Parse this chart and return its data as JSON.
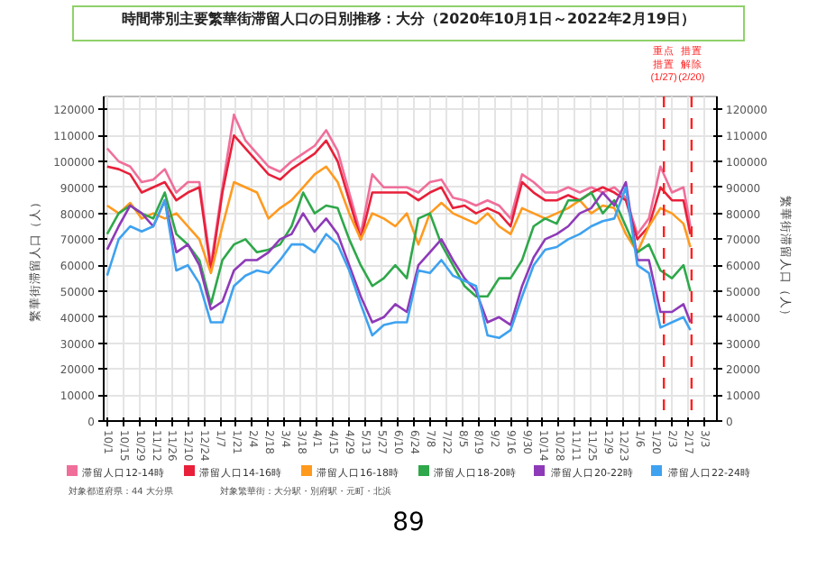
{
  "chart_data": {
    "type": "line",
    "title": "時間帯別主要繁華街滞留人口の日別推移：大分（2020年10月1日～2022年2月19日）",
    "ylabel": "繁華街滞留人口（人）",
    "y2label": "繁華街滞留人口（人）",
    "x": [
      "2020-10-01",
      "2020-10-11",
      "2020-10-21",
      "2020-10-31",
      "2020-11-10",
      "2020-11-20",
      "2020-11-30",
      "2020-12-10",
      "2020-12-20",
      "2020-12-30",
      "2021-01-09",
      "2021-01-19",
      "2021-01-29",
      "2021-02-08",
      "2021-02-18",
      "2021-02-28",
      "2021-03-10",
      "2021-03-20",
      "2021-03-30",
      "2021-04-09",
      "2021-04-19",
      "2021-04-29",
      "2021-05-09",
      "2021-05-19",
      "2021-05-29",
      "2021-06-08",
      "2021-06-18",
      "2021-06-28",
      "2021-07-08",
      "2021-07-18",
      "2021-07-28",
      "2021-08-07",
      "2021-08-17",
      "2021-08-27",
      "2021-09-06",
      "2021-09-16",
      "2021-09-26",
      "2021-10-06",
      "2021-10-16",
      "2021-10-26",
      "2021-11-05",
      "2021-11-15",
      "2021-11-25",
      "2021-12-05",
      "2021-12-15",
      "2021-12-25",
      "2022-01-04",
      "2022-01-14",
      "2022-01-24",
      "2022-02-03",
      "2022-02-13",
      "2022-02-19"
    ],
    "series": [
      {
        "name": "滞留人口12-14時",
        "color": "#f06f9a",
        "values": [
          105000,
          100000,
          98000,
          92000,
          93000,
          97000,
          88000,
          92000,
          92000,
          60000,
          90000,
          118000,
          108000,
          103000,
          98000,
          96000,
          100000,
          103000,
          106000,
          112000,
          104000,
          88000,
          72000,
          95000,
          90000,
          90000,
          90000,
          88000,
          92000,
          93000,
          86000,
          85000,
          83000,
          85000,
          83000,
          78000,
          95000,
          92000,
          88000,
          88000,
          90000,
          88000,
          90000,
          88000,
          90000,
          86000,
          72000,
          78000,
          98000,
          88000,
          90000,
          75000
        ]
      },
      {
        "name": "滞留人口14-16時",
        "color": "#e8203a",
        "values": [
          98000,
          97000,
          95000,
          88000,
          90000,
          92000,
          85000,
          88000,
          90000,
          58000,
          88000,
          110000,
          105000,
          100000,
          95000,
          93000,
          97000,
          100000,
          103000,
          108000,
          100000,
          85000,
          70000,
          88000,
          88000,
          88000,
          88000,
          85000,
          88000,
          90000,
          82000,
          83000,
          80000,
          82000,
          80000,
          75000,
          92000,
          88000,
          85000,
          85000,
          87000,
          85000,
          88000,
          90000,
          88000,
          85000,
          70000,
          75000,
          90000,
          85000,
          85000,
          72000
        ]
      },
      {
        "name": "滞留人口16-18時",
        "color": "#ff9a1f",
        "values": [
          83000,
          80000,
          84000,
          78000,
          80000,
          78000,
          80000,
          75000,
          70000,
          57000,
          75000,
          92000,
          90000,
          88000,
          78000,
          82000,
          85000,
          90000,
          95000,
          98000,
          92000,
          80000,
          70000,
          80000,
          78000,
          75000,
          80000,
          68000,
          80000,
          84000,
          80000,
          78000,
          76000,
          80000,
          75000,
          72000,
          82000,
          80000,
          78000,
          80000,
          82000,
          85000,
          80000,
          83000,
          82000,
          72000,
          65000,
          75000,
          82000,
          80000,
          76000,
          67000
        ]
      },
      {
        "name": "滞留人口18-20時",
        "color": "#2ea84a",
        "values": [
          72000,
          80000,
          83000,
          80000,
          78000,
          88000,
          72000,
          68000,
          62000,
          45000,
          62000,
          68000,
          70000,
          65000,
          66000,
          68000,
          75000,
          88000,
          80000,
          83000,
          82000,
          70000,
          60000,
          52000,
          55000,
          60000,
          55000,
          78000,
          80000,
          68000,
          60000,
          52000,
          48000,
          48000,
          55000,
          55000,
          62000,
          75000,
          78000,
          76000,
          85000,
          85000,
          88000,
          80000,
          85000,
          75000,
          65000,
          68000,
          58000,
          55000,
          60000,
          50000
        ]
      },
      {
        "name": "滞留人口20-22時",
        "color": "#8e3ab8",
        "values": [
          66000,
          75000,
          83000,
          80000,
          75000,
          85000,
          65000,
          68000,
          60000,
          43000,
          46000,
          58000,
          62000,
          62000,
          65000,
          70000,
          72000,
          80000,
          73000,
          78000,
          72000,
          60000,
          48000,
          38000,
          40000,
          45000,
          42000,
          60000,
          65000,
          70000,
          62000,
          55000,
          50000,
          38000,
          40000,
          37000,
          52000,
          63000,
          70000,
          72000,
          75000,
          80000,
          82000,
          88000,
          83000,
          92000,
          62000,
          62000,
          42000,
          42000,
          45000,
          38000
        ]
      },
      {
        "name": "滞留人口22-24時",
        "color": "#3ea2f0",
        "values": [
          56000,
          70000,
          75000,
          73000,
          75000,
          85000,
          58000,
          60000,
          53000,
          38000,
          38000,
          52000,
          56000,
          58000,
          57000,
          62000,
          68000,
          68000,
          65000,
          72000,
          68000,
          58000,
          45000,
          33000,
          37000,
          38000,
          38000,
          58000,
          57000,
          62000,
          56000,
          54000,
          52000,
          33000,
          32000,
          35000,
          48000,
          60000,
          66000,
          67000,
          70000,
          72000,
          75000,
          77000,
          78000,
          90000,
          60000,
          57000,
          36000,
          38000,
          40000,
          35000
        ]
      }
    ],
    "xlim": [
      "2020-09-28",
      "2022-03-14"
    ],
    "xticks": [
      {
        "value": "2020-10-01",
        "label": "10/1"
      },
      {
        "value": "2020-10-15",
        "label": "10/15"
      },
      {
        "value": "2020-10-29",
        "label": "10/29"
      },
      {
        "value": "2020-11-12",
        "label": "11/12"
      },
      {
        "value": "2020-11-26",
        "label": "11/26"
      },
      {
        "value": "2020-12-10",
        "label": "12/10"
      },
      {
        "value": "2020-12-24",
        "label": "12/24"
      },
      {
        "value": "2021-01-07",
        "label": "1/7"
      },
      {
        "value": "2021-01-21",
        "label": "1/21"
      },
      {
        "value": "2021-02-04",
        "label": "2/4"
      },
      {
        "value": "2021-02-18",
        "label": "2/18"
      },
      {
        "value": "2021-03-04",
        "label": "3/4"
      },
      {
        "value": "2021-03-18",
        "label": "3/18"
      },
      {
        "value": "2021-04-01",
        "label": "4/1"
      },
      {
        "value": "2021-04-15",
        "label": "4/15"
      },
      {
        "value": "2021-04-29",
        "label": "4/29"
      },
      {
        "value": "2021-05-13",
        "label": "5/13"
      },
      {
        "value": "2021-05-27",
        "label": "5/27"
      },
      {
        "value": "2021-06-10",
        "label": "6/10"
      },
      {
        "value": "2021-06-24",
        "label": "6/24"
      },
      {
        "value": "2021-07-08",
        "label": "7/8"
      },
      {
        "value": "2021-07-22",
        "label": "7/22"
      },
      {
        "value": "2021-08-05",
        "label": "8/5"
      },
      {
        "value": "2021-08-19",
        "label": "8/19"
      },
      {
        "value": "2021-09-02",
        "label": "9/2"
      },
      {
        "value": "2021-09-16",
        "label": "9/16"
      },
      {
        "value": "2021-09-30",
        "label": "9/30"
      },
      {
        "value": "2021-10-14",
        "label": "10/14"
      },
      {
        "value": "2021-10-28",
        "label": "10/28"
      },
      {
        "value": "2021-11-11",
        "label": "11/11"
      },
      {
        "value": "2021-11-25",
        "label": "11/25"
      },
      {
        "value": "2021-12-09",
        "label": "12/9"
      },
      {
        "value": "2021-12-23",
        "label": "12/23"
      },
      {
        "value": "2022-01-06",
        "label": "1/6"
      },
      {
        "value": "2022-01-20",
        "label": "1/20"
      },
      {
        "value": "2022-02-03",
        "label": "2/3"
      },
      {
        "value": "2022-02-17",
        "label": "2/17"
      },
      {
        "value": "2022-03-03",
        "label": "3/3"
      }
    ],
    "ylim": [
      0,
      125000
    ],
    "yticks": [
      0,
      10000,
      20000,
      30000,
      40000,
      50000,
      60000,
      70000,
      80000,
      90000,
      100000,
      110000,
      120000
    ],
    "y2lim": [
      0,
      125000
    ],
    "y2ticks": [
      0,
      10000,
      20000,
      30000,
      40000,
      50000,
      60000,
      70000,
      80000,
      90000,
      100000,
      110000,
      120000
    ],
    "ref_lines": [
      {
        "axis": "x",
        "value": "2022-01-27",
        "label": "重点措置(1/27)",
        "color": "#ff2020",
        "line_style": "dashed"
      },
      {
        "axis": "x",
        "value": "2022-02-20",
        "label": "措置解除(2/20)",
        "color": "#ff2020",
        "line_style": "dashed"
      }
    ],
    "grid": true,
    "legend": "bottom",
    "annotations": [
      "対象都道府県：44 大分県",
      "対象繁華街：大分駅・別府駅・元町・北浜",
      "89"
    ]
  }
}
